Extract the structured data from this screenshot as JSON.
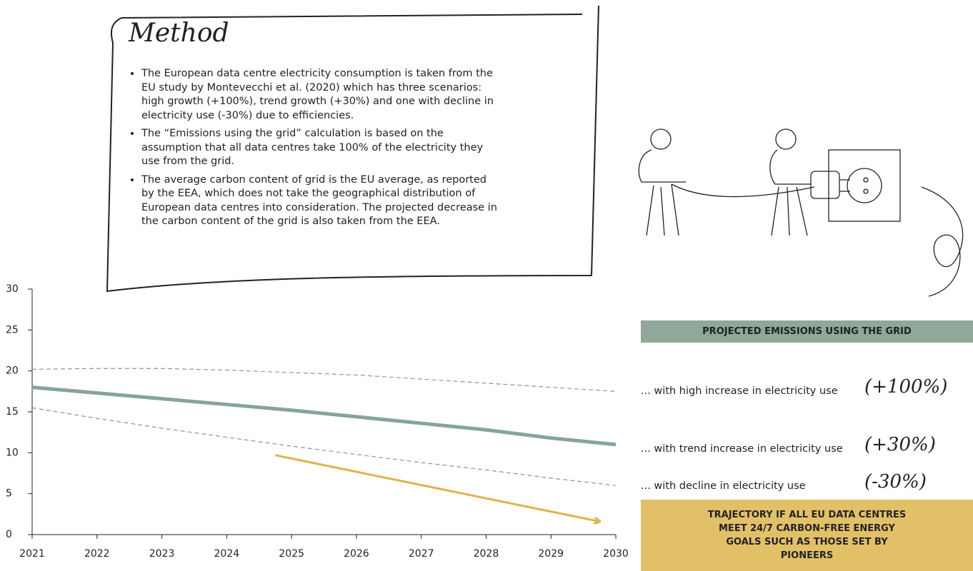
{
  "method": {
    "title": "Method",
    "bullets": [
      "The European data centre electricity consumption is taken from the EU study by Montevecchi et al. (2020) which has three scenarios: high growth (+100%), trend growth (+30%) and one with decline in electricity use (-30%) due to efficiencies.",
      "The “Emissions using the grid” calculation is based on the assumption that all data centres take 100% of the electricity they use from the grid.",
      "The average carbon content of grid is the EU average, as reported by the EEA, which does not take the geographical distribution of European data centres into consideration. The projected decrease in the carbon content of the grid is also taken from the EEA."
    ]
  },
  "chart_data": {
    "type": "line",
    "legend_title": "PROJECTED EMISSIONS USING THE GRID",
    "x": [
      2021,
      2022,
      2023,
      2024,
      2025,
      2026,
      2027,
      2028,
      2029,
      2030
    ],
    "xlim": [
      2021,
      2030
    ],
    "xticks": [
      2021,
      2022,
      2023,
      2024,
      2025,
      2026,
      2027,
      2028,
      2029,
      2030
    ],
    "ylim": [
      0,
      30
    ],
    "yticks": [
      0,
      5,
      10,
      15,
      20,
      25,
      30
    ],
    "grid": false,
    "series": [
      {
        "name": "... with high increase in electricity use",
        "label": "(+100%)",
        "color": "#7f9e8f",
        "dashed": true,
        "values": [
          20.2,
          20.3,
          20.3,
          20.1,
          19.8,
          19.5,
          19.0,
          18.5,
          18.0,
          17.5
        ]
      },
      {
        "name": "... with trend increase in electricity use",
        "label": "(+30%)",
        "color": "#85a595",
        "dashed": false,
        "values": [
          18.0,
          17.3,
          16.6,
          15.9,
          15.2,
          14.4,
          13.6,
          12.8,
          11.8,
          11.0
        ]
      },
      {
        "name": "... with decline in electricity use",
        "label": "(-30%)",
        "color": "#7f9e8f",
        "dashed": true,
        "values": [
          15.5,
          14.2,
          13.0,
          11.9,
          10.8,
          9.8,
          8.8,
          7.9,
          6.9,
          6.0
        ]
      },
      {
        "name": "TRAJECTORY IF ALL EU DATA CENTRES MEET 24/7 CARBON-FREE ENERGY GOALS SUCH AS THOSE SET BY PIONEERS",
        "color": "#e0b449",
        "arrow": true,
        "x": [
          2024.75,
          2029.75
        ],
        "values": [
          9.7,
          1.6
        ]
      }
    ]
  }
}
